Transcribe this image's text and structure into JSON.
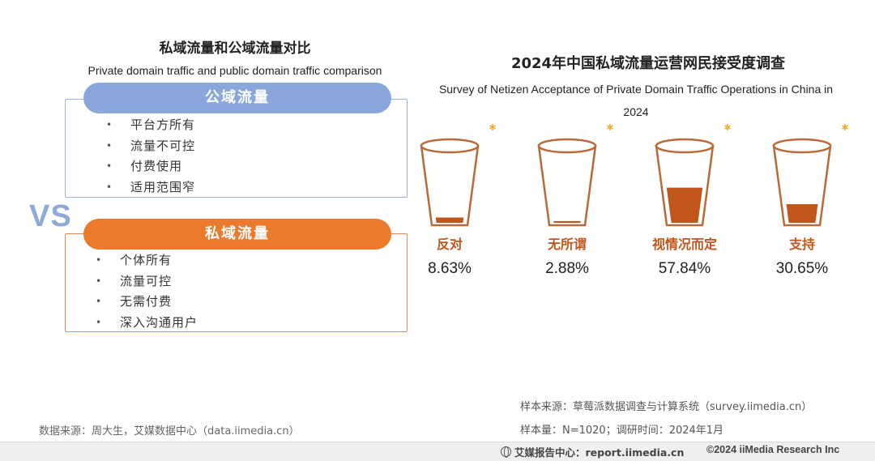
{
  "left": {
    "title": "私域流量和公域流量对比",
    "subtitle": "Private domain traffic and public domain traffic comparison",
    "vs": "VS",
    "public": {
      "label": "公域流量",
      "items": [
        "平台方所有",
        "流量不可控",
        "付费使用",
        "适用范围窄"
      ]
    },
    "private": {
      "label": "私域流量",
      "items": [
        "个体所有",
        "流量可控",
        "无需付费",
        "深入沟通用户"
      ]
    },
    "source": "数据来源：周大生，艾媒数据中心（data.iimedia.cn）"
  },
  "chart_data": {
    "type": "bar",
    "title": "2024年中国私域流量运营网民接受度调查",
    "subtitle": "Survey of Netizen Acceptance of Private Domain Traffic Operations in China in 2024",
    "categories": [
      "反对",
      "无所谓",
      "视情况而定",
      "支持"
    ],
    "values": [
      8.63,
      2.88,
      57.84,
      30.65
    ],
    "value_labels": [
      "8.63%",
      "2.88%",
      "57.84%",
      "30.65%"
    ],
    "ylim": [
      0,
      100
    ],
    "colors": {
      "fill": "#c0561a",
      "cup_stroke": "#b96a3a",
      "sparkle": "#f2b134"
    }
  },
  "footer": {
    "sample_source": "样本来源：草莓派数据调查与计算系统（survey.iimedia.cn）",
    "sample_size": "样本量：N=1020；调研时间：2024年1月",
    "brand": "艾媒报告中心：report.iimedia.cn",
    "copyright": "©2024  iiMedia Research  Inc"
  }
}
